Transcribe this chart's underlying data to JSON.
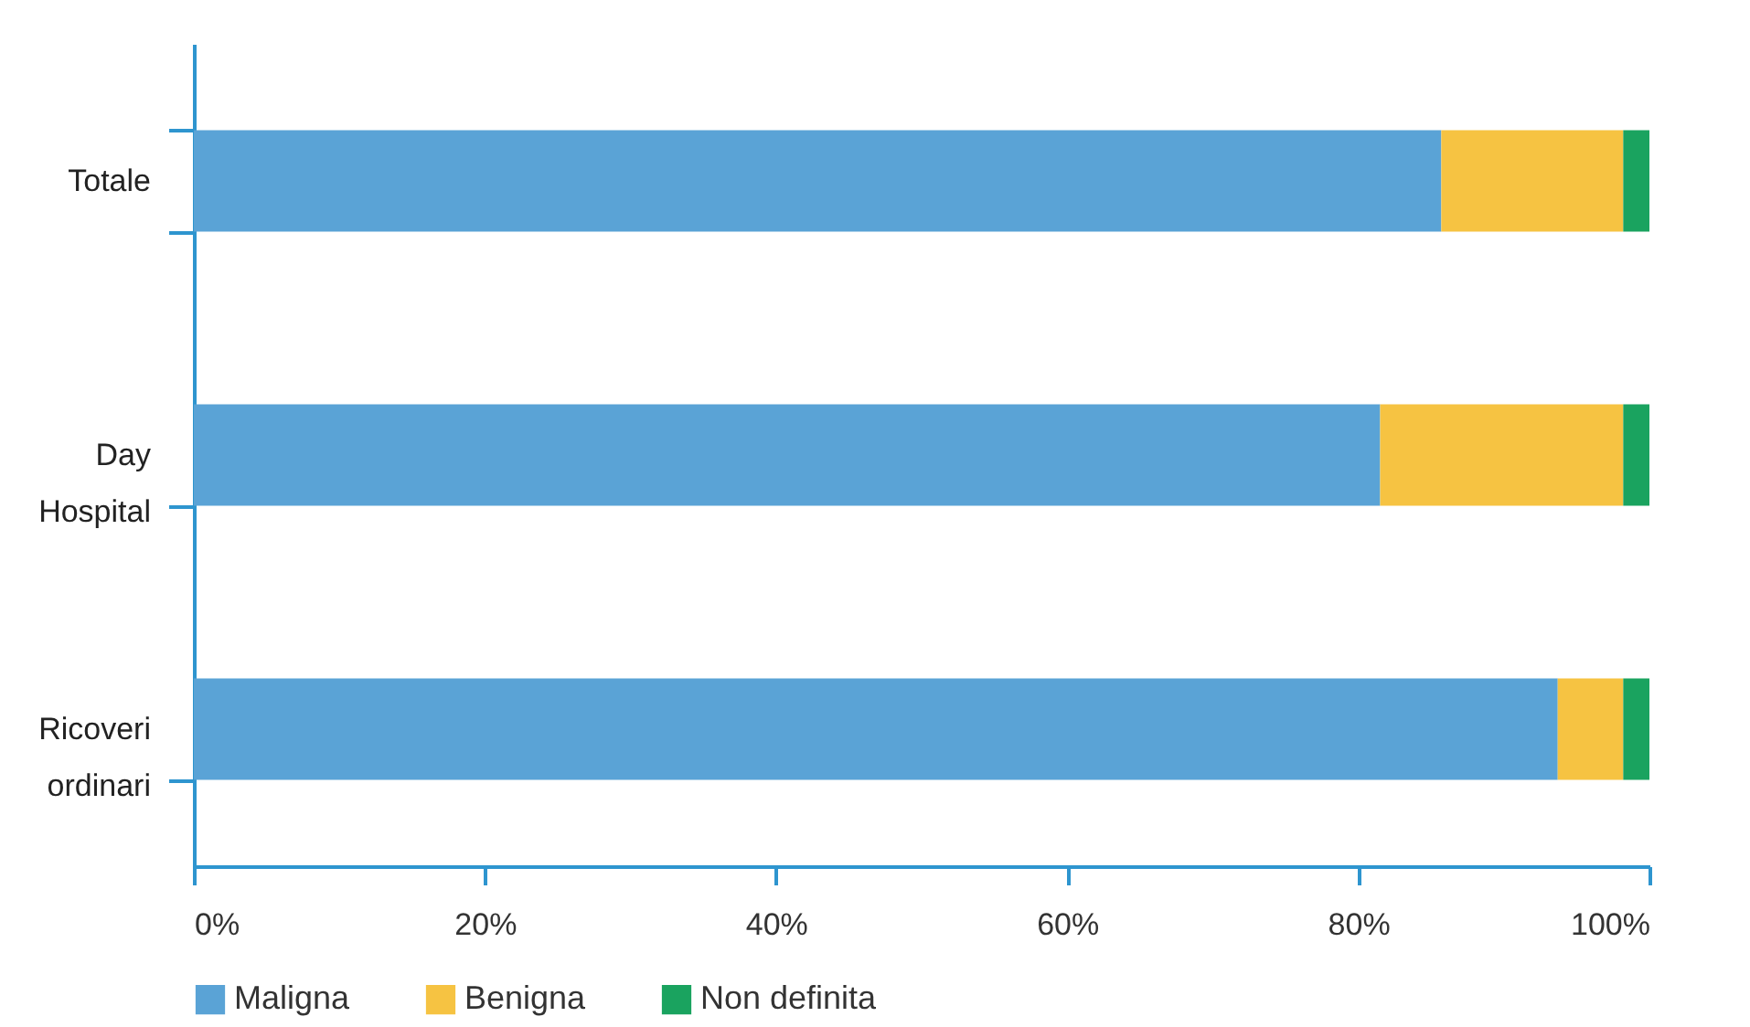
{
  "chart_data": {
    "type": "bar",
    "orientation": "horizontal",
    "stacked": true,
    "categories": [
      "Totale",
      "Day Hospital",
      "Ricoveri ordinari"
    ],
    "series": [
      {
        "name": "Maligna",
        "color": "#5aa3d6",
        "values": [
          85.7,
          81.5,
          93.7
        ]
      },
      {
        "name": "Benigna",
        "color": "#f6c342",
        "values": [
          12.5,
          16.7,
          4.5
        ]
      },
      {
        "name": "Non definita",
        "color": "#1aa35f",
        "values": [
          1.8,
          1.8,
          1.8
        ]
      }
    ],
    "xlim": [
      0,
      100
    ],
    "xticks": [
      {
        "value": 0,
        "label": "0%"
      },
      {
        "value": 20,
        "label": "20%"
      },
      {
        "value": 40,
        "label": "40%"
      },
      {
        "value": 60,
        "label": "60%"
      },
      {
        "value": 80,
        "label": "80%"
      },
      {
        "value": 100,
        "label": "100%"
      }
    ],
    "grid": false,
    "legend": "bottom"
  }
}
